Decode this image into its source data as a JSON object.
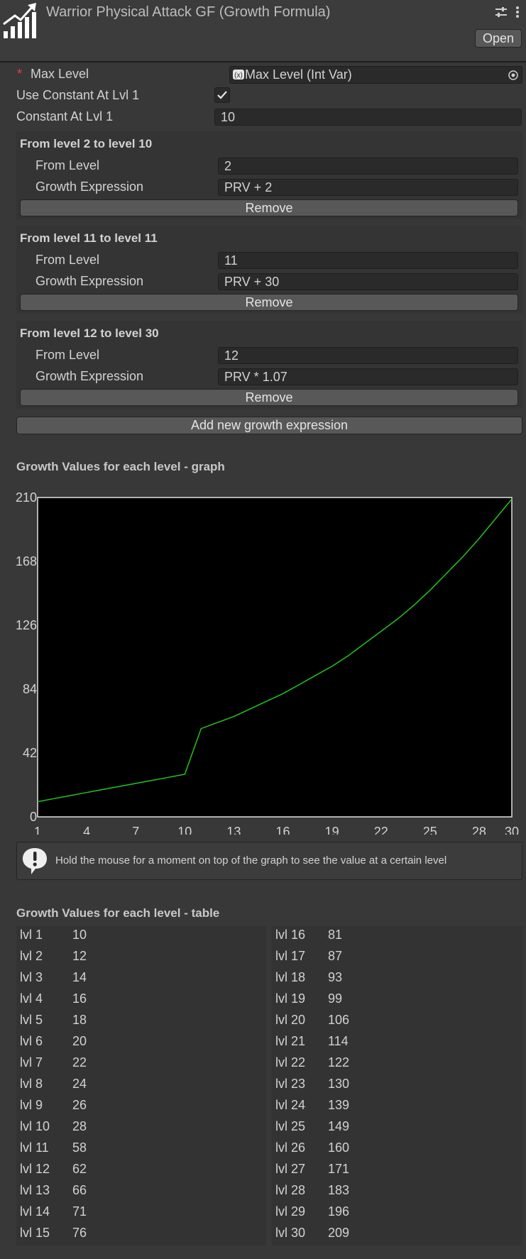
{
  "header": {
    "title": "Warrior Physical Attack GF (Growth Formula)",
    "open_label": "Open",
    "icons": [
      "chart-growth-icon",
      "sliders-icon",
      "kebab-menu-icon"
    ]
  },
  "fields": {
    "required_marker": "*",
    "max_level_label": "Max Level",
    "max_level_value": "Max Level (Int Var)",
    "use_constant_label": "Use Constant At Lvl 1",
    "use_constant_checked": true,
    "constant_label": "Constant At Lvl 1",
    "constant_value": "10"
  },
  "expressions": [
    {
      "title": "From level 2 to level 10",
      "from_label": "From Level",
      "from_value": "2",
      "expr_label": "Growth Expression",
      "expr_value": "PRV + 2",
      "remove_label": "Remove"
    },
    {
      "title": "From level 11 to level 11",
      "from_label": "From Level",
      "from_value": "11",
      "expr_label": "Growth Expression",
      "expr_value": "PRV + 30",
      "remove_label": "Remove"
    },
    {
      "title": "From level 12 to level 30",
      "from_label": "From Level",
      "from_value": "12",
      "expr_label": "Growth Expression",
      "expr_value": "PRV * 1.07",
      "remove_label": "Remove"
    }
  ],
  "add_button_label": "Add new growth expression",
  "graph_heading": "Growth Values for each level - graph",
  "chart_data": {
    "type": "line",
    "x": [
      1,
      2,
      3,
      4,
      5,
      6,
      7,
      8,
      9,
      10,
      11,
      12,
      13,
      14,
      15,
      16,
      17,
      18,
      19,
      20,
      21,
      22,
      23,
      24,
      25,
      26,
      27,
      28,
      29,
      30
    ],
    "series": [
      {
        "values": [
          10,
          12,
          14,
          16,
          18,
          20,
          22,
          24,
          26,
          28,
          58,
          62,
          66,
          71,
          76,
          81,
          87,
          93,
          99,
          106,
          114,
          122,
          130,
          139,
          149,
          160,
          171,
          183,
          196,
          209
        ]
      }
    ],
    "xticks": [
      "1",
      "4",
      "7",
      "10",
      "13",
      "16",
      "19",
      "22",
      "25",
      "28",
      "30"
    ],
    "yticks": [
      "0",
      "42",
      "84",
      "126",
      "168",
      "210"
    ],
    "xlim": [
      1,
      30
    ],
    "ylim": [
      0,
      210
    ],
    "line_color": "#22c41e",
    "background": "#000000",
    "grid": false
  },
  "help_text": "Hold the mouse for a moment on top of the graph to see the value at a certain level",
  "table_heading": "Growth Values for each level - table",
  "table": {
    "left": [
      {
        "level": "lvl 1",
        "value": "10"
      },
      {
        "level": "lvl 2",
        "value": "12"
      },
      {
        "level": "lvl 3",
        "value": "14"
      },
      {
        "level": "lvl 4",
        "value": "16"
      },
      {
        "level": "lvl 5",
        "value": "18"
      },
      {
        "level": "lvl 6",
        "value": "20"
      },
      {
        "level": "lvl 7",
        "value": "22"
      },
      {
        "level": "lvl 8",
        "value": "24"
      },
      {
        "level": "lvl 9",
        "value": "26"
      },
      {
        "level": "lvl 10",
        "value": "28"
      },
      {
        "level": "lvl 11",
        "value": "58"
      },
      {
        "level": "lvl 12",
        "value": "62"
      },
      {
        "level": "lvl 13",
        "value": "66"
      },
      {
        "level": "lvl 14",
        "value": "71"
      },
      {
        "level": "lvl 15",
        "value": "76"
      }
    ],
    "right": [
      {
        "level": "lvl 16",
        "value": "81"
      },
      {
        "level": "lvl 17",
        "value": "87"
      },
      {
        "level": "lvl 18",
        "value": "93"
      },
      {
        "level": "lvl 19",
        "value": "99"
      },
      {
        "level": "lvl 20",
        "value": "106"
      },
      {
        "level": "lvl 21",
        "value": "114"
      },
      {
        "level": "lvl 22",
        "value": "122"
      },
      {
        "level": "lvl 23",
        "value": "130"
      },
      {
        "level": "lvl 24",
        "value": "139"
      },
      {
        "level": "lvl 25",
        "value": "149"
      },
      {
        "level": "lvl 26",
        "value": "160"
      },
      {
        "level": "lvl 27",
        "value": "171"
      },
      {
        "level": "lvl 28",
        "value": "183"
      },
      {
        "level": "lvl 29",
        "value": "196"
      },
      {
        "level": "lvl 30",
        "value": "209"
      }
    ]
  }
}
